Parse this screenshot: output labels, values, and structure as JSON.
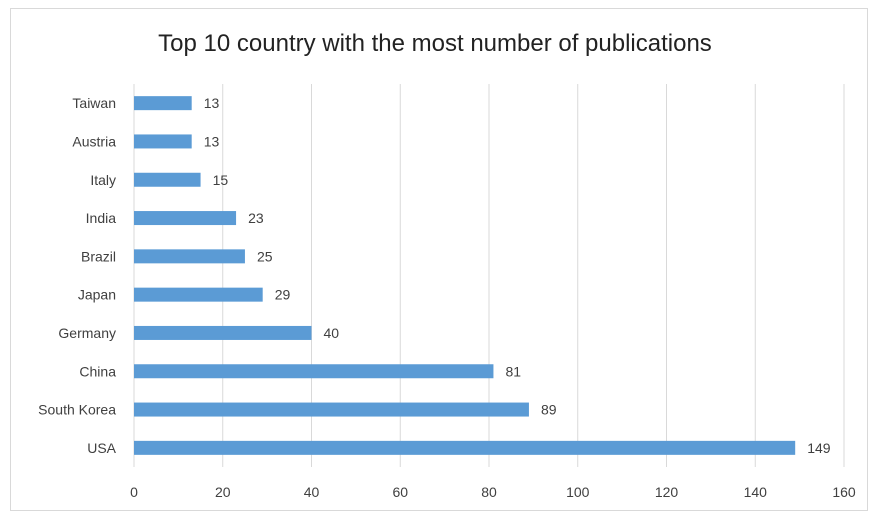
{
  "chart_data": {
    "type": "bar",
    "orientation": "horizontal",
    "title": "Top 10 country with the most number of publications",
    "categories": [
      "USA",
      "South Korea",
      "China",
      "Germany",
      "Japan",
      "Brazil",
      "India",
      "Italy",
      "Austria",
      "Taiwan"
    ],
    "values": [
      149,
      89,
      81,
      40,
      29,
      25,
      23,
      15,
      13,
      13
    ],
    "xlim": [
      0,
      160
    ],
    "xticks": [
      0,
      20,
      40,
      60,
      80,
      100,
      120,
      140,
      160
    ],
    "xlabel": "",
    "ylabel": "",
    "grid": true,
    "data_labels": true,
    "colors": {
      "bar": "#5b9bd5",
      "grid": "#d9d9d9",
      "text": "#404040"
    }
  }
}
